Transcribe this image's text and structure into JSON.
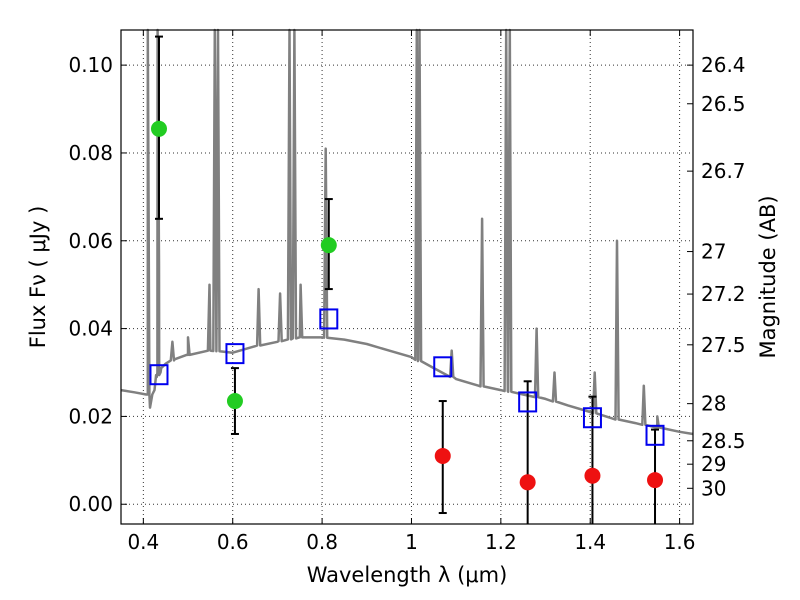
{
  "chart_data": {
    "type": "scatter",
    "xlabel": "Wavelength  λ (μm)",
    "ylabel": "Flux  Fν ( μJy )",
    "y2label": "Magnitude (AB)",
    "xlim": [
      0.35,
      1.63
    ],
    "ylim": [
      -0.0045,
      0.108
    ],
    "xticks": [
      0.4,
      0.6,
      0.8,
      1.0,
      1.2,
      1.4,
      1.6
    ],
    "xtick_labels": [
      "0.4",
      "0.6",
      "0.8",
      "1",
      "1.2",
      "1.4",
      "1.6"
    ],
    "yticks": [
      0.0,
      0.02,
      0.04,
      0.06,
      0.08,
      0.1
    ],
    "ytick_labels": [
      "0.00",
      "0.02",
      "0.04",
      "0.06",
      "0.08",
      "0.10"
    ],
    "magnitude_ticks": [
      "26.4",
      "26.5",
      "26.7",
      "27",
      "27.2",
      "27.5",
      "28",
      "28.5",
      "29",
      "30"
    ],
    "grid": true,
    "colors": {
      "template": "#808080",
      "detections": "#22cc22",
      "upper_limits": "#ee1111",
      "model_photometry": "#0000ee",
      "error_bars": "#000000"
    },
    "series": [
      {
        "type": "line",
        "x": [
          0.35,
          0.38,
          0.41,
          0.415,
          0.42,
          0.425,
          0.43,
          0.44,
          0.45,
          0.47,
          0.5,
          0.55,
          0.6,
          0.65,
          0.7,
          0.75,
          0.8,
          0.85,
          0.9,
          0.95,
          1.0,
          1.05,
          1.1,
          1.15,
          1.2,
          1.25,
          1.3,
          1.35,
          1.4,
          1.45,
          1.5,
          1.55,
          1.6,
          1.63
        ],
        "y": [
          0.026,
          0.0255,
          0.025,
          0.022,
          0.025,
          0.026,
          0.029,
          0.031,
          0.032,
          0.033,
          0.034,
          0.035,
          0.0345,
          0.036,
          0.037,
          0.038,
          0.038,
          0.0375,
          0.0365,
          0.035,
          0.0335,
          0.031,
          0.0285,
          0.027,
          0.026,
          0.025,
          0.024,
          0.0225,
          0.021,
          0.0195,
          0.0185,
          0.0175,
          0.0165,
          0.016
        ],
        "lines": [
          {
            "x": 0.41,
            "peak": 0.11
          },
          {
            "x": 0.432,
            "peak": 0.11
          },
          {
            "x": 0.435,
            "peak": 0.055
          },
          {
            "x": 0.465,
            "peak": 0.037
          },
          {
            "x": 0.5,
            "peak": 0.038
          },
          {
            "x": 0.548,
            "peak": 0.05
          },
          {
            "x": 0.56,
            "peak": 0.11
          },
          {
            "x": 0.567,
            "peak": 0.11
          },
          {
            "x": 0.658,
            "peak": 0.049
          },
          {
            "x": 0.706,
            "peak": 0.048
          },
          {
            "x": 0.727,
            "peak": 0.11
          },
          {
            "x": 0.738,
            "peak": 0.11
          },
          {
            "x": 0.752,
            "peak": 0.05
          },
          {
            "x": 0.808,
            "peak": 0.081
          },
          {
            "x": 1.012,
            "peak": 0.11
          },
          {
            "x": 1.018,
            "peak": 0.11
          },
          {
            "x": 1.09,
            "peak": 0.035
          },
          {
            "x": 1.158,
            "peak": 0.065
          },
          {
            "x": 1.212,
            "peak": 0.11
          },
          {
            "x": 1.22,
            "peak": 0.11
          },
          {
            "x": 1.28,
            "peak": 0.04
          },
          {
            "x": 1.32,
            "peak": 0.03
          },
          {
            "x": 1.41,
            "peak": 0.03
          },
          {
            "x": 1.46,
            "peak": 0.06
          },
          {
            "x": 1.52,
            "peak": 0.027
          },
          {
            "x": 1.55,
            "peak": 0.02
          }
        ]
      },
      {
        "type": "scatter",
        "x": [
          0.435,
          0.605,
          0.815
        ],
        "y": [
          0.0855,
          0.0235,
          0.059
        ],
        "err_low": [
          0.065,
          0.016,
          0.049
        ],
        "err_high": [
          0.1065,
          0.031,
          0.0695
        ]
      },
      {
        "type": "scatter",
        "x": [
          1.07,
          1.26,
          1.405,
          1.545
        ],
        "y": [
          0.011,
          0.005,
          0.0065,
          0.0055
        ],
        "err_low": [
          -0.002,
          -0.0045,
          -0.0045,
          -0.0045
        ],
        "err_high": [
          0.0235,
          0.028,
          0.0245,
          0.017
        ]
      },
      {
        "type": "scatter",
        "marker": "open-square",
        "x": [
          0.435,
          0.605,
          0.815,
          1.07,
          1.26,
          1.405,
          1.545
        ],
        "y": [
          0.0295,
          0.0343,
          0.0422,
          0.0313,
          0.0233,
          0.0197,
          0.0157
        ]
      }
    ]
  }
}
